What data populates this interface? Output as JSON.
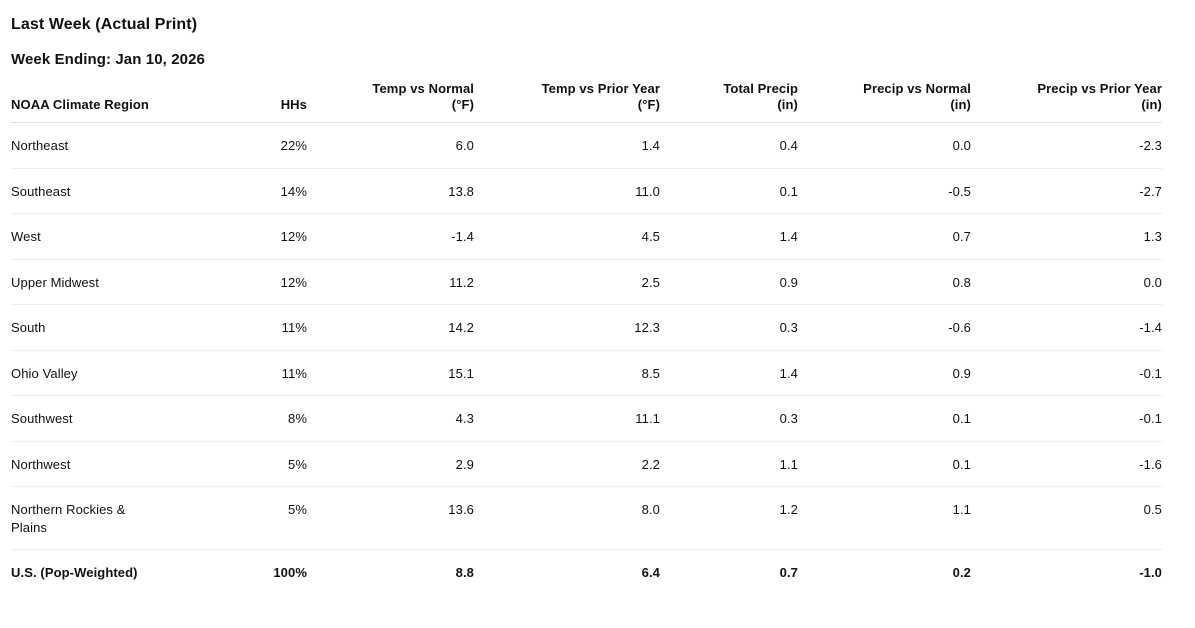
{
  "page": {
    "title": "Last Week (Actual Print)",
    "subtitle": "Week Ending: Jan 10, 2026"
  },
  "colors": {
    "text": "#111111",
    "row_border": "#ececec",
    "header_border": "#e0e0e0",
    "background": "#ffffff"
  },
  "chart_data": {
    "type": "table",
    "title": "Last Week (Actual Print)",
    "subtitle": "Week Ending: Jan 10, 2026",
    "columns": [
      {
        "label": "NOAA Climate Region",
        "unit": "",
        "align": "left"
      },
      {
        "label": "HHs",
        "unit": "",
        "align": "right"
      },
      {
        "label": "Temp vs Normal",
        "unit": "(°F)",
        "align": "right"
      },
      {
        "label": "Temp vs Prior Year",
        "unit": "(°F)",
        "align": "right"
      },
      {
        "label": "Total Precip",
        "unit": "(in)",
        "align": "right"
      },
      {
        "label": "Precip vs Normal",
        "unit": "(in)",
        "align": "right"
      },
      {
        "label": "Precip vs Prior Year",
        "unit": "(in)",
        "align": "right"
      }
    ],
    "rows": [
      [
        "Northeast",
        "22%",
        "6.0",
        "1.4",
        "0.4",
        "0.0",
        "-2.3"
      ],
      [
        "Southeast",
        "14%",
        "13.8",
        "11.0",
        "0.1",
        "-0.5",
        "-2.7"
      ],
      [
        "West",
        "12%",
        "-1.4",
        "4.5",
        "1.4",
        "0.7",
        "1.3"
      ],
      [
        "Upper Midwest",
        "12%",
        "11.2",
        "2.5",
        "0.9",
        "0.8",
        "0.0"
      ],
      [
        "South",
        "11%",
        "14.2",
        "12.3",
        "0.3",
        "-0.6",
        "-1.4"
      ],
      [
        "Ohio Valley",
        "11%",
        "15.1",
        "8.5",
        "1.4",
        "0.9",
        "-0.1"
      ],
      [
        "Southwest",
        "8%",
        "4.3",
        "11.1",
        "0.3",
        "0.1",
        "-0.1"
      ],
      [
        "Northwest",
        "5%",
        "2.9",
        "2.2",
        "1.1",
        "0.1",
        "-1.6"
      ],
      [
        "Northern Rockies & Plains",
        "5%",
        "13.6",
        "8.0",
        "1.2",
        "1.1",
        "0.5"
      ]
    ],
    "total_row": [
      "U.S. (Pop-Weighted)",
      "100%",
      "8.8",
      "6.4",
      "0.7",
      "0.2",
      "-1.0"
    ]
  }
}
